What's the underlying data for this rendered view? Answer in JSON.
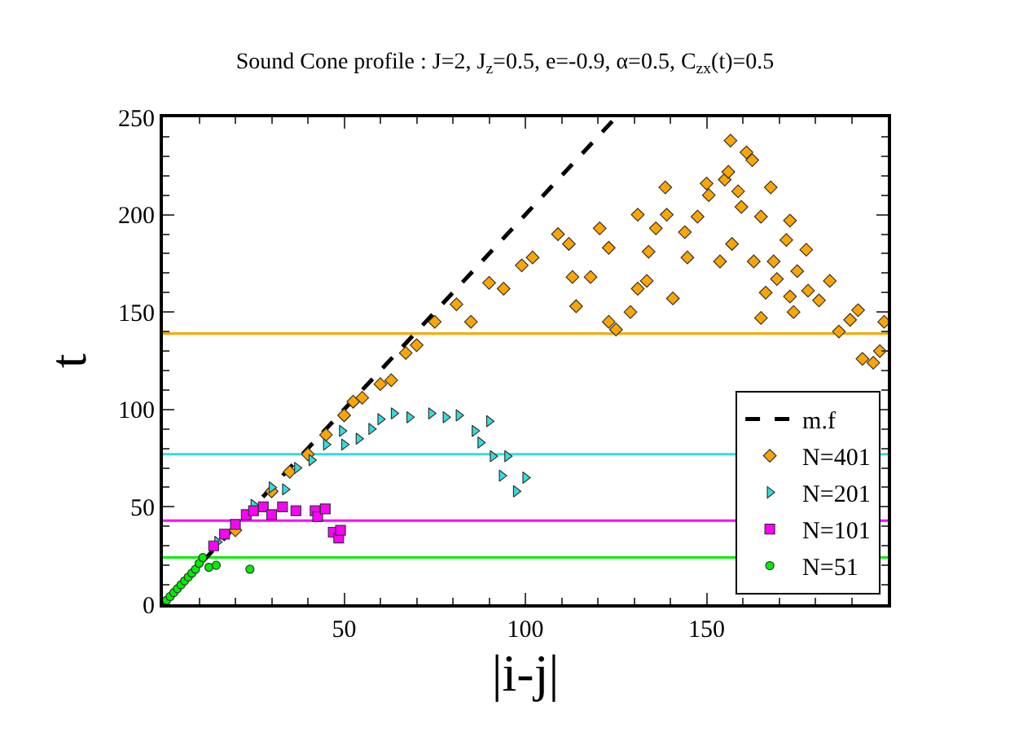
{
  "chart_data": {
    "type": "scatter",
    "title": "Sound Cone profile : J=2, J$_{z}$=0.5, e=-0.9, α=0.5, C$_{zx}$(t)=0.5",
    "xlabel": "|i-j|",
    "ylabel": "t",
    "xlim": [
      0,
      200
    ],
    "xticks": [
      50,
      100,
      150
    ],
    "ylim": [
      0,
      250
    ],
    "yticks": [
      0,
      50,
      100,
      150,
      200,
      250
    ],
    "grid": false,
    "legend": "bottom right",
    "series": [
      {
        "name": "m.f",
        "type": "line",
        "color": "#000000",
        "line_style": "dashed",
        "marker": "none",
        "x": [
          0,
          125
        ],
        "values": [
          0,
          250
        ]
      },
      {
        "name": "N=401",
        "color": "#ffa500",
        "marker": "diamond",
        "x": [
          20,
          30,
          35,
          40,
          45,
          50,
          52.5,
          55,
          60,
          63,
          67,
          70,
          75,
          81,
          85,
          90,
          94,
          99,
          102,
          109,
          112,
          113,
          114,
          118,
          120.5,
          123,
          123,
          125,
          129,
          131,
          131,
          133.5,
          134,
          136,
          138.6,
          139,
          140.7,
          144,
          144.7,
          147.5,
          150,
          150.6,
          153.7,
          155,
          156,
          156.6,
          157,
          158.7,
          159.6,
          161,
          162.6,
          163,
          165,
          165,
          166.3,
          167.7,
          168.5,
          169.4,
          172,
          173,
          173,
          174,
          175,
          177.5,
          178,
          181,
          184,
          186.5,
          189.6,
          191.8,
          193,
          196,
          197.8,
          199
        ],
        "values": [
          38,
          58,
          68,
          77,
          87,
          97,
          104,
          106,
          113,
          115,
          129,
          133,
          145,
          154,
          145,
          165,
          162,
          174,
          178,
          190,
          185,
          168,
          153,
          168,
          193,
          183,
          145,
          141,
          150,
          162,
          200,
          166,
          181,
          193,
          214,
          200,
          157,
          191,
          178,
          199,
          216,
          210,
          176,
          218,
          222,
          238,
          185,
          212,
          204,
          232,
          228,
          176,
          199,
          147,
          160,
          214,
          176,
          167,
          187,
          197,
          158,
          150,
          171,
          182,
          161,
          156,
          166,
          140,
          146,
          151,
          126,
          124,
          130,
          145
        ]
      },
      {
        "name": "N=201",
        "color": "#33dddd",
        "marker": "triangle",
        "x": [
          15,
          25,
          30,
          33.7,
          37,
          41,
          45,
          49.4,
          50,
          54,
          57.5,
          60,
          63.7,
          68,
          74,
          78,
          81.6,
          86,
          87.6,
          90,
          91,
          93.5,
          95,
          97.4,
          100
        ],
        "values": [
          32,
          51,
          60,
          59,
          70,
          74,
          82,
          89,
          82,
          85,
          90,
          95,
          98,
          96,
          98,
          96,
          97,
          89,
          83,
          94,
          76,
          66,
          76,
          58,
          65
        ]
      },
      {
        "name": "N=101",
        "color": "#ff00ff",
        "marker": "square",
        "x": [
          14,
          17,
          20,
          23,
          25,
          27.7,
          30,
          33,
          36.7,
          42,
          42.7,
          44.8,
          47,
          48.5,
          49
        ],
        "values": [
          30,
          36,
          41,
          46,
          48,
          50,
          46,
          50,
          48,
          48,
          45,
          49,
          37,
          34,
          38
        ]
      },
      {
        "name": "N=51",
        "color": "#00ee00",
        "marker": "circle",
        "x": [
          1,
          2,
          3,
          4,
          5,
          6,
          7,
          8,
          9,
          10,
          11,
          12.7,
          14.7,
          24
        ],
        "values": [
          2,
          4,
          6,
          8,
          10,
          12,
          14,
          16,
          18,
          21,
          24,
          19,
          20,
          18
        ]
      }
    ],
    "ref_lines": [
      {
        "axis": "y",
        "value": 139,
        "color": "#ffa500"
      },
      {
        "axis": "y",
        "value": 77,
        "color": "#33dddd"
      },
      {
        "axis": "y",
        "value": 43,
        "color": "#ff00ff"
      },
      {
        "axis": "y",
        "value": 24,
        "color": "#00ee00"
      }
    ]
  }
}
